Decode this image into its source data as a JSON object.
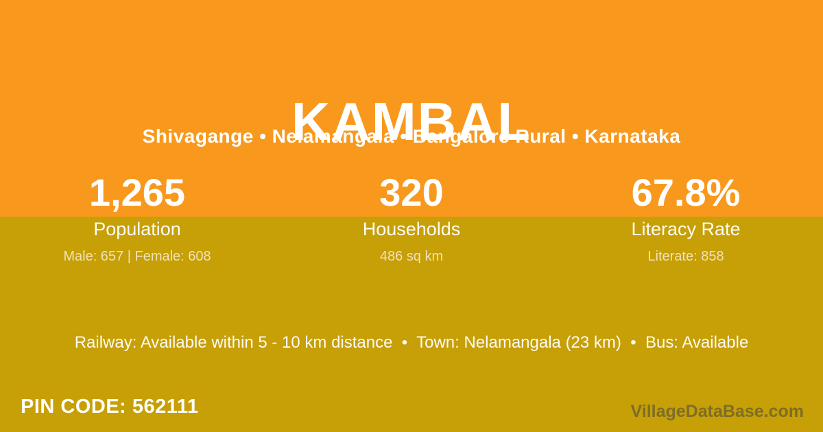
{
  "colors": {
    "orange_band": "#F8991E",
    "gold_band": "#C79F06",
    "text_white": "#FFFFFF",
    "text_cream_detail": "#EFE2BB",
    "watermark_gray": "#6E6E66"
  },
  "header": {
    "title": "KAMBAL",
    "location": "Shivagange • Nelamangala • Bangalore Rural • Karnataka"
  },
  "stats": [
    {
      "value": "1,265",
      "label": "Population",
      "detail": "Male: 657 | Female: 608"
    },
    {
      "value": "320",
      "label": "Households",
      "detail": "486 sq km"
    },
    {
      "value": "67.8%",
      "label": "Literacy Rate",
      "detail": "Literate: 858"
    }
  ],
  "transport_line": "Railway: Available within 5 - 10 km distance  •  Town: Nelamangala (23 km)  •  Bus: Available",
  "footer": {
    "pin_code": "PIN CODE: 562111",
    "watermark": "VillageDataBase.com"
  }
}
